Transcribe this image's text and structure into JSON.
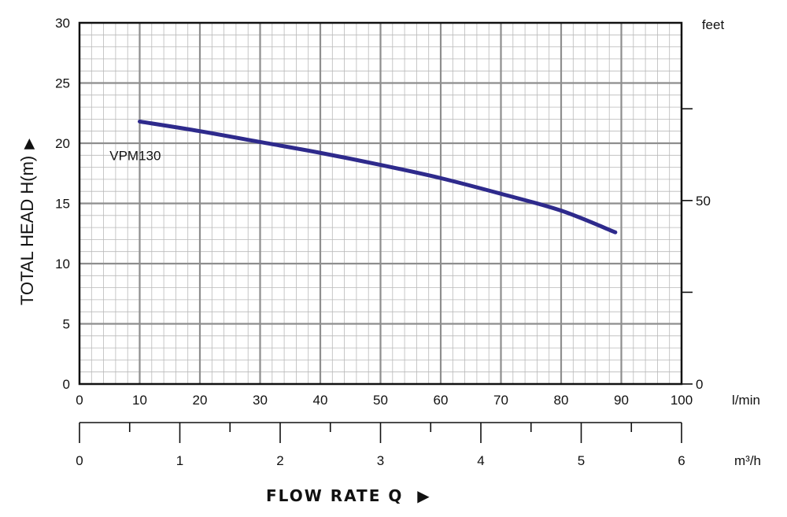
{
  "chart_data": {
    "type": "line",
    "ylabel": "TOTAL HEAD H(m)",
    "xlabel": "FLOW RATE Q",
    "series": [
      {
        "name": "VPM130",
        "color": "#2e2a8c",
        "x": [
          10,
          20,
          30,
          40,
          50,
          60,
          70,
          80,
          89
        ],
        "y": [
          21.8,
          21.0,
          20.1,
          19.2,
          18.2,
          17.1,
          15.8,
          14.4,
          12.6
        ]
      }
    ],
    "x_axis": {
      "unit": "l/min",
      "range": [
        0,
        100
      ],
      "ticks": [
        0,
        10,
        20,
        30,
        40,
        50,
        60,
        70,
        80,
        90,
        100
      ]
    },
    "y_axis": {
      "range": [
        0,
        30
      ],
      "ticks": [
        0,
        5,
        10,
        15,
        20,
        25,
        30
      ]
    },
    "y2_axis": {
      "unit": "feet",
      "labeled_ticks": [
        0,
        50
      ],
      "all_ticks": [
        0,
        25,
        50,
        75
      ]
    },
    "x2_axis": {
      "unit": "m³/h",
      "range": [
        0,
        6
      ],
      "ticks": [
        0,
        1,
        2,
        3,
        4,
        5,
        6
      ]
    },
    "grid": true,
    "arrow_glyph": "▶"
  }
}
